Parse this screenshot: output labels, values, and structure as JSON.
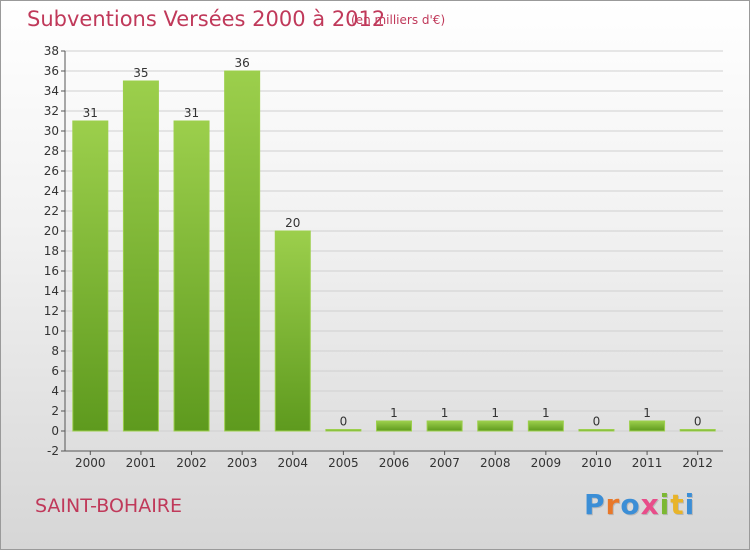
{
  "chart_data": {
    "type": "bar",
    "title": "Subventions Versées 2000 à 2012",
    "unit": "(en milliers d'€)",
    "categories": [
      "2000",
      "2001",
      "2002",
      "2003",
      "2004",
      "2005",
      "2006",
      "2007",
      "2008",
      "2009",
      "2010",
      "2011",
      "2012"
    ],
    "values": [
      31,
      35,
      31,
      36,
      20,
      0,
      1,
      1,
      1,
      1,
      0,
      1,
      0
    ],
    "ylim": [
      -2,
      38
    ],
    "yticks": [
      -2,
      0,
      2,
      4,
      6,
      8,
      10,
      12,
      14,
      16,
      18,
      20,
      22,
      24,
      26,
      28,
      30,
      32,
      34,
      36,
      38
    ],
    "grid": true,
    "bar_color": "#7cb833",
    "bar_color_light": "#9ccf4c",
    "bar_color_dark": "#5e9a1e"
  },
  "commune": "SAINT-BOHAIRE",
  "logo": {
    "text": "Proxiti",
    "colors": [
      "#3b8ed6",
      "#e8782a",
      "#3b8ed6",
      "#e84d8a",
      "#7cb833",
      "#e8b42a",
      "#3b8ed6"
    ]
  },
  "accent_color": "#c0395a"
}
